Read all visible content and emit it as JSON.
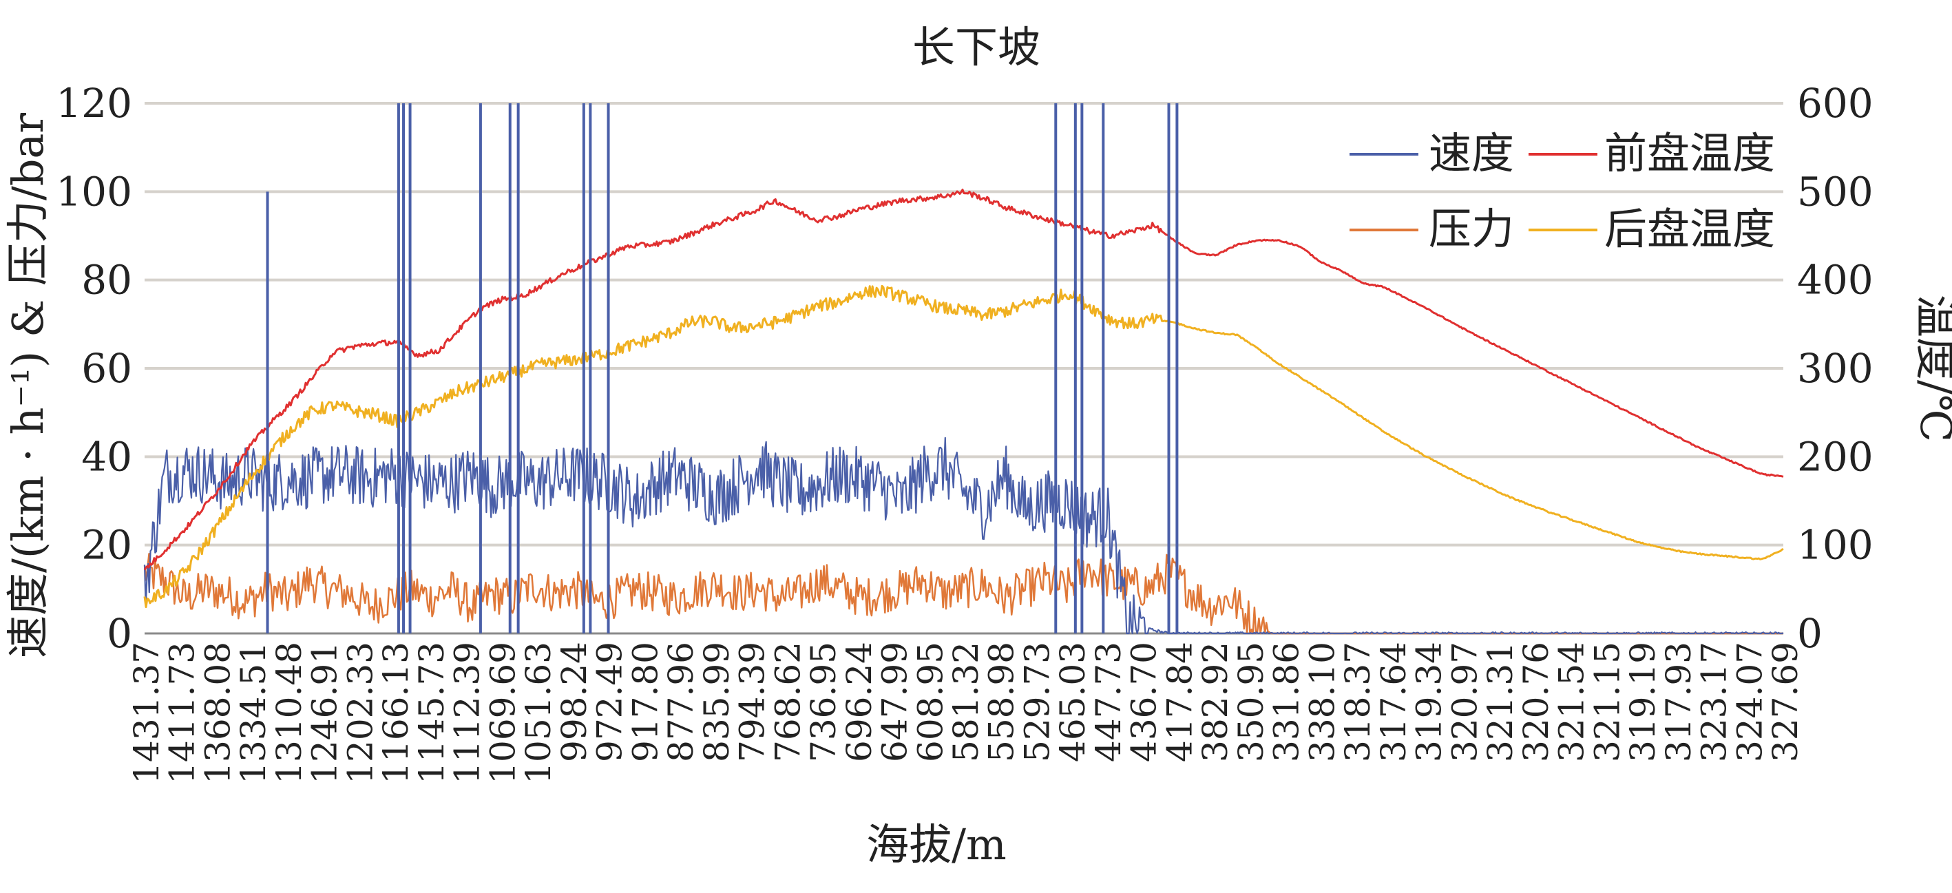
{
  "chart_data": {
    "type": "line",
    "title": "长下坡",
    "xlabel": "海拔/m",
    "ylabel_left": "速度/(km · h⁻¹) & 压力/bar",
    "ylabel_right": "温度/℃",
    "ylim_left": [
      0,
      120
    ],
    "ylim_right": [
      0,
      600
    ],
    "yticks_left": [
      "0",
      "20",
      "40",
      "60",
      "80",
      "100",
      "120"
    ],
    "yticks_right": [
      "0",
      "100",
      "200",
      "300",
      "400",
      "500",
      "600"
    ],
    "grid": true,
    "legend_position": "top-right",
    "x_tick_labels": [
      "1431.37",
      "1411.73",
      "1368.08",
      "1334.51",
      "1310.48",
      "1246.91",
      "1202.33",
      "1166.13",
      "1145.73",
      "1112.39",
      "1069.69",
      "1051.63",
      "998.24",
      "972.49",
      "917.80",
      "877.96",
      "835.99",
      "794.39",
      "768.62",
      "736.95",
      "696.24",
      "647.99",
      "608.95",
      "581.32",
      "558.98",
      "529.73",
      "465.03",
      "447.73",
      "436.70",
      "417.84",
      "382.92",
      "350.95",
      "331.86",
      "338.10",
      "318.37",
      "317.64",
      "319.34",
      "320.97",
      "321.31",
      "320.76",
      "321.54",
      "321.15",
      "319.19",
      "317.93",
      "323.17",
      "324.07",
      "327.69"
    ],
    "series": [
      {
        "name": "速度",
        "axis": "left",
        "color": "#4a5fa8",
        "values": [
          10,
          36,
          37,
          36,
          34,
          36,
          34,
          35,
          35,
          36,
          36,
          35,
          36,
          35,
          34,
          34,
          36,
          33,
          35,
          34,
          35,
          36,
          35,
          33,
          30,
          34,
          36,
          33,
          31,
          34,
          38,
          34,
          32,
          34,
          36,
          35,
          33,
          30,
          36,
          38,
          32,
          28,
          36,
          28,
          30,
          30,
          26,
          27,
          2,
          1,
          0,
          0,
          0,
          0,
          0,
          0,
          0,
          0,
          0,
          0,
          0,
          0,
          0,
          0,
          0,
          0,
          0,
          0,
          0,
          0,
          0,
          0,
          0,
          0,
          0,
          0,
          0,
          0,
          0,
          0,
          0
        ]
      },
      {
        "name": "前盘温度",
        "axis": "right",
        "color": "#e03030",
        "values": [
          72,
          95,
          120,
          148,
          178,
          212,
          238,
          262,
          290,
          318,
          325,
          328,
          330,
          315,
          320,
          345,
          368,
          378,
          382,
          395,
          408,
          418,
          428,
          438,
          440,
          443,
          452,
          462,
          470,
          478,
          490,
          478,
          468,
          472,
          480,
          485,
          490,
          492,
          495,
          500,
          492,
          482,
          475,
          468,
          462,
          455,
          450,
          455,
          462,
          445,
          430,
          428,
          440,
          445,
          445,
          438,
          420,
          410,
          396,
          392,
          380,
          368,
          355,
          342,
          330,
          318,
          306,
          294,
          282,
          270,
          258,
          246,
          234,
          222,
          210,
          200,
          190,
          180,
          178
        ]
      },
      {
        "name": "压力",
        "axis": "left",
        "color": "#e07838",
        "values": [
          14,
          12,
          8,
          10,
          9,
          7,
          10,
          8,
          12,
          10,
          9,
          6,
          8,
          10,
          8,
          10,
          6,
          9,
          8,
          11,
          9,
          10,
          7,
          8,
          10,
          9,
          8,
          10,
          11,
          9,
          10,
          8,
          9,
          12,
          10,
          8,
          9,
          10,
          12,
          9,
          10,
          11,
          8,
          10,
          12,
          10,
          15,
          12,
          11,
          10,
          14,
          10,
          6,
          8,
          3,
          0,
          0,
          0,
          0,
          0,
          0,
          0,
          0,
          0,
          0,
          0,
          0,
          0,
          0,
          0,
          0,
          0,
          0,
          0,
          0,
          0,
          0,
          0,
          0,
          0,
          0
        ]
      },
      {
        "name": "后盘温度",
        "axis": "right",
        "color": "#f0b020",
        "values": [
          35,
          48,
          72,
          105,
          140,
          175,
          205,
          232,
          252,
          258,
          252,
          248,
          240,
          250,
          262,
          275,
          282,
          290,
          298,
          305,
          308,
          312,
          318,
          325,
          332,
          340,
          352,
          354,
          345,
          348,
          352,
          360,
          370,
          375,
          385,
          388,
          382,
          375,
          368,
          365,
          360,
          365,
          372,
          378,
          385,
          370,
          355,
          350,
          355,
          352,
          345,
          340,
          338,
          322,
          305,
          290,
          275,
          260,
          244,
          228,
          214,
          200,
          188,
          176,
          165,
          154,
          145,
          136,
          128,
          120,
          112,
          104,
          98,
          93,
          90,
          88,
          86,
          84,
          95
        ]
      }
    ],
    "spikes": {
      "speed_spike_x_positions_note": "",
      "speed_spike_values": [
        100,
        120,
        120,
        120,
        120,
        120,
        120,
        120,
        120,
        120,
        120,
        120,
        120,
        120,
        120,
        120
      ]
    }
  }
}
